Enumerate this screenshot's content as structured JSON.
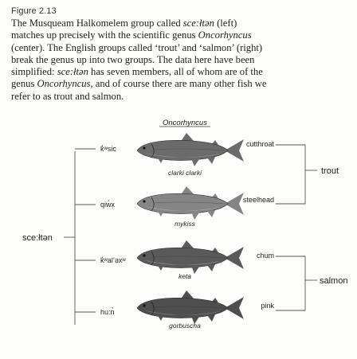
{
  "figure": {
    "label": "Figure 2.13",
    "caption_lines": [
      [
        {
          "t": "The Musqueam Halkomelem group called "
        },
        {
          "t": "sce:łtən",
          "i": true
        },
        {
          "t": " (left)"
        }
      ],
      [
        {
          "t": "matches up precisely with the scientific genus "
        },
        {
          "t": "Oncorhyncus",
          "i": true
        }
      ],
      [
        {
          "t": "(center). The English groups called ‘trout’ and ‘salmon’ (right)"
        }
      ],
      [
        {
          "t": "break the genus up into two groups. The data here have been"
        }
      ],
      [
        {
          "t": "simplified: "
        },
        {
          "t": "sce:łtən",
          "i": true
        },
        {
          "t": " has seven members, all of whom are of the"
        }
      ],
      [
        {
          "t": "genus "
        },
        {
          "t": "Oncorhyncus",
          "i": true
        },
        {
          "t": ", and of course there are many other fish we"
        }
      ],
      [
        {
          "t": "refer to as trout and salmon."
        }
      ]
    ]
  },
  "diagram": {
    "genus_heading": "Oncorhyncus",
    "halkomelem_group": "sce:łtən",
    "fish": [
      {
        "halkomelem": "k̓ʷsic",
        "scientific": "clarki clarki",
        "english": "cutthroat",
        "color": "#6b6b6b",
        "belly": "#9a9a9a"
      },
      {
        "halkomelem": "qiw̓x̣",
        "scientific": "mykiss",
        "english": "steelhead",
        "color": "#858585",
        "belly": "#b5b5b5"
      },
      {
        "halkomelem": "k̓ʷal’əxʷ",
        "scientific": "keta",
        "english": "chum",
        "color": "#5a5a5a",
        "belly": "#a8a8a8"
      },
      {
        "halkomelem": "hu:n̓",
        "scientific": "gorbuscha",
        "english": "pink",
        "color": "#4e4e4e",
        "belly": "#8e8e8e"
      }
    ],
    "english_groups": {
      "trout": "trout",
      "salmon": "salmon"
    }
  }
}
